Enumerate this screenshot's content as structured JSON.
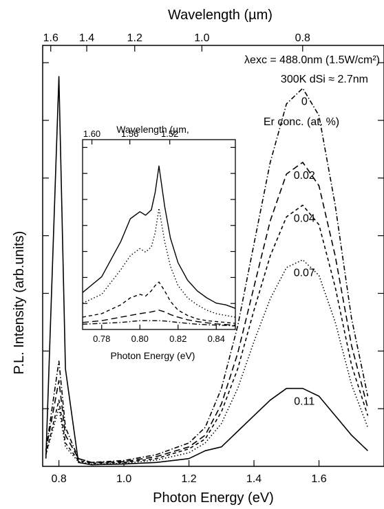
{
  "chart_data": [
    {
      "type": "line",
      "xlabel": "Photon Energy (eV)",
      "ylabel": "P.L. Intensity (arb.units)",
      "top_xlabel": "Wavelength (µm)",
      "xlim": [
        0.75,
        1.8
      ],
      "ylim": [
        0,
        1.08
      ],
      "x_ticks": [
        0.8,
        1.0,
        1.2,
        1.4,
        1.6
      ],
      "x_tick_labels": [
        "0.8",
        "1.0",
        "1.2",
        "1.4",
        "1.6"
      ],
      "top_ticks": [
        {
          "label": "1.6",
          "value": 1.6
        },
        {
          "label": "1.4",
          "value": 1.4
        },
        {
          "label": "1.2",
          "value": 1.2
        },
        {
          "label": "1.0",
          "value": 1.0
        },
        {
          "label": "0.8",
          "value": 0.8
        }
      ],
      "legend_title": "Er conc. (at. %)",
      "annotations": [
        "λexc = 488.0nm (1.5W/cm²)",
        "300K   dSi ≈ 2.7nm"
      ],
      "x": [
        0.76,
        0.8,
        0.82,
        0.86,
        0.9,
        1.0,
        1.1,
        1.2,
        1.25,
        1.3,
        1.35,
        1.4,
        1.45,
        1.5,
        1.55,
        1.6,
        1.65,
        1.7,
        1.75
      ],
      "series": [
        {
          "name": "0",
          "line_style": "dash-dot",
          "values": [
            0.04,
            0.27,
            0.1,
            0.02,
            0.01,
            0.015,
            0.03,
            0.06,
            0.1,
            0.2,
            0.36,
            0.57,
            0.78,
            0.93,
            0.97,
            0.9,
            0.67,
            0.38,
            0.18
          ]
        },
        {
          "name": "0.02",
          "line_style": "dashed",
          "values": [
            0.04,
            0.22,
            0.08,
            0.02,
            0.01,
            0.012,
            0.025,
            0.05,
            0.08,
            0.16,
            0.29,
            0.46,
            0.63,
            0.75,
            0.78,
            0.72,
            0.54,
            0.31,
            0.15
          ]
        },
        {
          "name": "0.04",
          "line_style": "short-dash",
          "values": [
            0.03,
            0.17,
            0.06,
            0.015,
            0.008,
            0.01,
            0.02,
            0.045,
            0.07,
            0.14,
            0.25,
            0.4,
            0.54,
            0.64,
            0.67,
            0.62,
            0.46,
            0.26,
            0.13
          ]
        },
        {
          "name": "0.07",
          "line_style": "dotted",
          "values": [
            0.03,
            0.15,
            0.05,
            0.012,
            0.006,
            0.008,
            0.016,
            0.035,
            0.06,
            0.11,
            0.2,
            0.32,
            0.43,
            0.51,
            0.53,
            0.49,
            0.37,
            0.21,
            0.1
          ]
        },
        {
          "name": "0.11",
          "line_style": "solid",
          "values": [
            0.02,
            1.0,
            0.25,
            0.01,
            0.004,
            0.006,
            0.01,
            0.02,
            0.04,
            0.05,
            0.09,
            0.13,
            0.17,
            0.2,
            0.2,
            0.18,
            0.13,
            0.08,
            0.04
          ]
        }
      ]
    },
    {
      "type": "line",
      "inset": true,
      "xlabel": "Photon Energy (eV)",
      "top_xlabel": "Wavelength (µm,",
      "xlim": [
        0.77,
        0.85
      ],
      "ylim": [
        0,
        1.08
      ],
      "x_ticks": [
        0.78,
        0.8,
        0.82,
        0.84
      ],
      "x_tick_labels": [
        "0.78",
        "0.80",
        "0.82",
        "0.84"
      ],
      "top_ticks": [
        {
          "label": "1.60",
          "value": 1.6
        },
        {
          "label": "1.56",
          "value": 1.56
        },
        {
          "label": "1.52",
          "value": 1.52
        }
      ],
      "x": [
        0.77,
        0.78,
        0.79,
        0.795,
        0.8,
        0.803,
        0.806,
        0.808,
        0.81,
        0.813,
        0.816,
        0.82,
        0.825,
        0.83,
        0.835,
        0.84,
        0.845,
        0.85
      ],
      "series": [
        {
          "name": "0.11",
          "line_style": "solid",
          "values": [
            0.21,
            0.3,
            0.5,
            0.63,
            0.67,
            0.65,
            0.68,
            0.78,
            0.93,
            0.7,
            0.52,
            0.38,
            0.28,
            0.22,
            0.18,
            0.15,
            0.14,
            0.12
          ]
        },
        {
          "name": "0.07",
          "line_style": "dotted",
          "values": [
            0.15,
            0.2,
            0.34,
            0.42,
            0.46,
            0.44,
            0.47,
            0.55,
            0.69,
            0.5,
            0.36,
            0.25,
            0.18,
            0.14,
            0.11,
            0.09,
            0.08,
            0.07
          ]
        },
        {
          "name": "0.04",
          "line_style": "short-dash",
          "values": [
            0.07,
            0.09,
            0.14,
            0.18,
            0.2,
            0.19,
            0.22,
            0.25,
            0.27,
            0.22,
            0.16,
            0.11,
            0.08,
            0.06,
            0.05,
            0.045,
            0.04,
            0.035
          ]
        },
        {
          "name": "0.02",
          "line_style": "dashed",
          "values": [
            0.04,
            0.05,
            0.07,
            0.08,
            0.09,
            0.095,
            0.1,
            0.105,
            0.11,
            0.1,
            0.085,
            0.07,
            0.055,
            0.045,
            0.038,
            0.032,
            0.028,
            0.025
          ]
        },
        {
          "name": "0",
          "line_style": "dash-dot",
          "values": [
            0.03,
            0.035,
            0.04,
            0.045,
            0.05,
            0.05,
            0.05,
            0.05,
            0.05,
            0.048,
            0.045,
            0.04,
            0.035,
            0.03,
            0.027,
            0.025,
            0.023,
            0.02
          ]
        }
      ]
    }
  ]
}
